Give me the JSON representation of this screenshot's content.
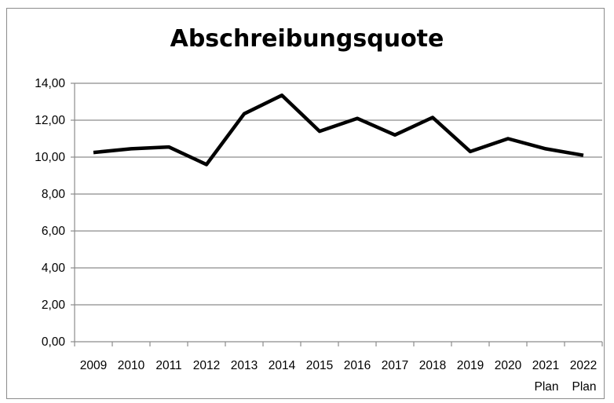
{
  "chart_data": {
    "type": "line",
    "title": "Abschreibungsquote",
    "xlabel": "",
    "ylabel": "",
    "categories": [
      "2009",
      "2010",
      "2011",
      "2012",
      "2013",
      "2014",
      "2015",
      "2016",
      "2017",
      "2018",
      "2019",
      "2020",
      "2021",
      "2022"
    ],
    "category_sublabels": [
      "",
      "",
      "",
      "",
      "",
      "",
      "",
      "",
      "",
      "",
      "",
      "",
      "Plan",
      "Plan"
    ],
    "series": [
      {
        "values": [
          10.25,
          10.45,
          10.55,
          9.6,
          12.35,
          13.35,
          11.4,
          12.1,
          11.2,
          12.15,
          10.3,
          11.0,
          10.45,
          10.1
        ],
        "color": "#000000"
      }
    ],
    "y_ticks": [
      "0,00",
      "2,00",
      "4,00",
      "6,00",
      "8,00",
      "10,00",
      "12,00",
      "14,00"
    ],
    "ylim": [
      0,
      14
    ],
    "grid": true,
    "legend": "none"
  }
}
